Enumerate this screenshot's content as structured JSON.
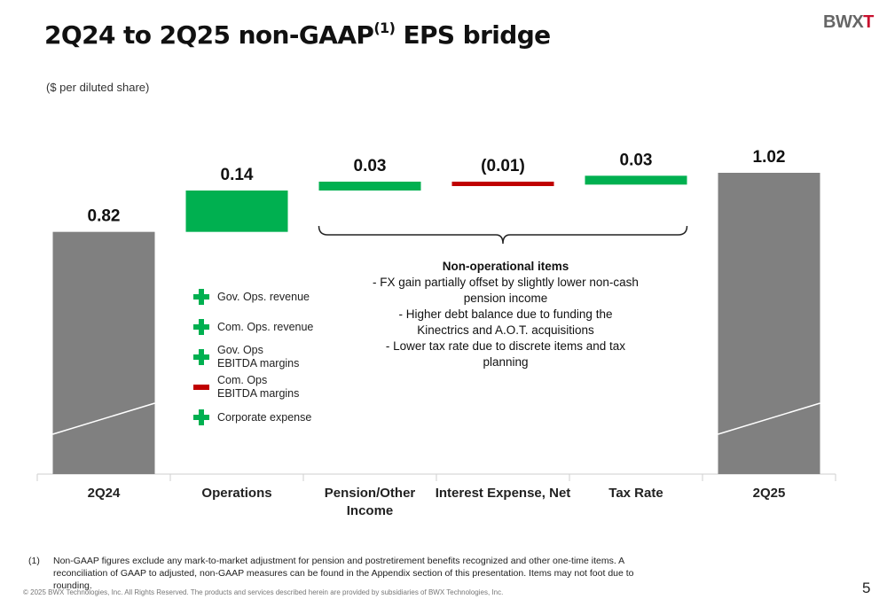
{
  "title": {
    "text": "2Q24 to 2Q25 non-GAAP",
    "superscript": "(1)",
    "text_suffix": " EPS bridge"
  },
  "logo": {
    "text_main": "BWX",
    "text_accent": "T"
  },
  "units_label": "($ per diluted share)",
  "chart_data": {
    "type": "bar",
    "subtype": "waterfall",
    "categories": [
      "2Q24",
      "Operations",
      "Pension/Other Income",
      "Interest Expense, Net",
      "Tax Rate",
      "2Q25"
    ],
    "values": [
      0.82,
      0.14,
      0.03,
      -0.01,
      0.03,
      1.02
    ],
    "kinds": [
      "total",
      "delta",
      "delta",
      "delta",
      "delta",
      "total"
    ],
    "value_labels": [
      "0.82",
      "0.14",
      "0.03",
      "(0.01)",
      "0.03",
      "1.02"
    ],
    "colors": {
      "total": "#808080",
      "increase": "#00b050",
      "decrease": "#c00000"
    },
    "ylim": [
      0,
      1.2
    ],
    "grid": false
  },
  "drivers": [
    {
      "sign": "plus",
      "label": "Gov. Ops. revenue"
    },
    {
      "sign": "plus",
      "label": "Com. Ops. revenue"
    },
    {
      "sign": "plus",
      "label": "Gov. Ops\nEBITDA margins"
    },
    {
      "sign": "minus",
      "label": "Com. Ops\nEBITDA margins"
    },
    {
      "sign": "plus",
      "label": "Corporate expense"
    }
  ],
  "nonop": {
    "title": "Non-operational items",
    "bullets": [
      "-   FX gain partially offset by slightly lower non-cash pension income",
      "-   Higher debt balance due to funding the Kinectrics and A.O.T. acquisitions",
      "-   Lower tax rate due to discrete items and tax planning"
    ]
  },
  "footnote": {
    "mark": "(1)",
    "text": "Non-GAAP figures exclude any mark-to-market adjustment for pension and postretirement benefits recognized and other one-time items.  A reconciliation of GAAP to adjusted, non-GAAP measures can be found in the Appendix section of this presentation.  Items may not foot due to rounding."
  },
  "copyright": "© 2025 BWX Technologies, Inc. All Rights Reserved.   The products and services described herein are provided by subsidiaries of BWX Technologies, Inc.",
  "page_number": "5"
}
